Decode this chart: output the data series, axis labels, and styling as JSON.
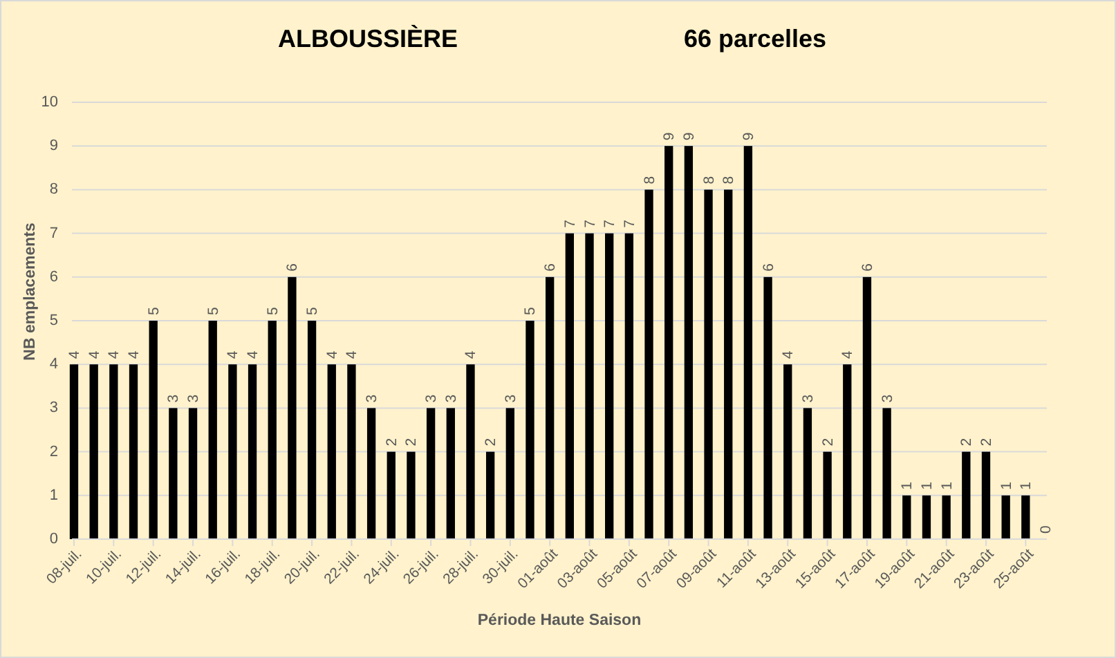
{
  "chart_data": {
    "type": "bar",
    "title": "ALBOUSSIÈRE",
    "subtitle": "66 parcelles",
    "xlabel": "Période Haute Saison",
    "ylabel": "NB emplacements",
    "categories": [
      "08-juil.",
      null,
      "10-juil.",
      null,
      "12-juil.",
      null,
      "14-juil.",
      null,
      "16-juil.",
      null,
      "18-juil.",
      null,
      "20-juil.",
      null,
      "22-juil.",
      null,
      "24-juil.",
      null,
      "26-juil.",
      null,
      "28-juil.",
      null,
      "30-juil.",
      null,
      "01-août",
      null,
      "03-août",
      null,
      "05-août",
      null,
      "07-août",
      null,
      "09-août",
      null,
      "11-août",
      null,
      "13-août",
      null,
      "15-août",
      null,
      "17-août",
      null,
      "19-août",
      null,
      "21-août",
      null,
      "23-août",
      null,
      "25-août",
      null
    ],
    "values": [
      4,
      4,
      4,
      4,
      5,
      3,
      3,
      5,
      4,
      4,
      5,
      6,
      5,
      4,
      4,
      3,
      2,
      2,
      3,
      3,
      4,
      2,
      3,
      5,
      6,
      7,
      7,
      7,
      7,
      8,
      9,
      9,
      8,
      8,
      9,
      6,
      4,
      3,
      2,
      4,
      6,
      3,
      1,
      1,
      1,
      2,
      2,
      1,
      1,
      0
    ],
    "color": "#000000",
    "ylim": [
      0,
      10
    ],
    "yticks": [
      0,
      1,
      2,
      3,
      4,
      5,
      6,
      7,
      8,
      9,
      10
    ],
    "grid": "y",
    "data_labels": true
  }
}
